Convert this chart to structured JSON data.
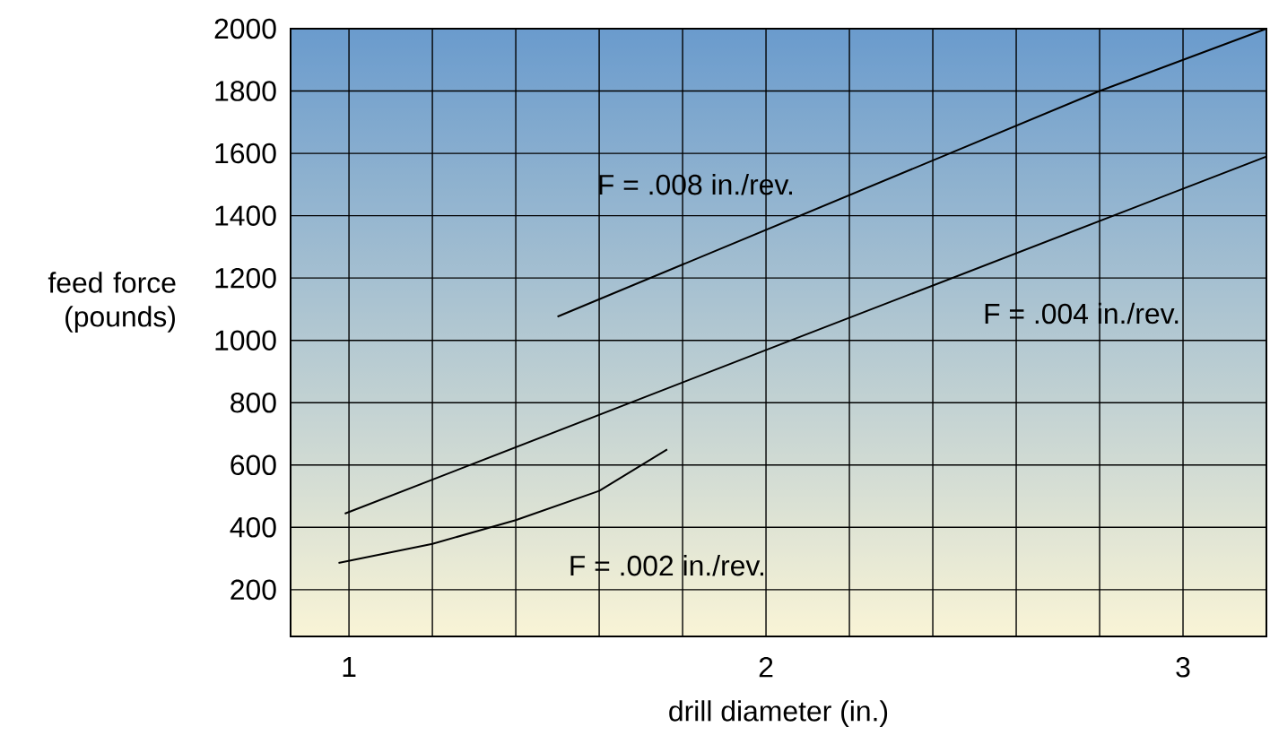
{
  "chart_data": {
    "type": "line",
    "xlabel": "drill diameter (in.)",
    "ylabel": "feed force (pounds)",
    "series": [
      {
        "name": "F = .008 in./rev.",
        "color": "#000000",
        "x": [
          1.5,
          2.8,
          3.2
        ],
        "values": [
          1076,
          1800,
          2000
        ]
      },
      {
        "name": "F = .004 in./rev.",
        "color": "#000000",
        "x": [
          0.99,
          2.06,
          3.2
        ],
        "values": [
          444,
          1000,
          1590
        ]
      },
      {
        "name": "F = .002 in./rev.",
        "color": "#000000",
        "x": [
          0.975,
          1.2,
          1.4,
          1.6,
          1.763
        ],
        "values": [
          286,
          347,
          423,
          517,
          650
        ]
      }
    ],
    "xlim": [
      0.86,
      3.2
    ],
    "ylim": [
      50,
      2000
    ],
    "xticks": [
      1,
      {
        "value": 1.2,
        "label": null
      },
      {
        "value": 1.4,
        "label": null
      },
      {
        "value": 1.6,
        "label": null
      },
      {
        "value": 1.8,
        "label": null
      },
      2,
      {
        "value": 2.2,
        "label": null
      },
      {
        "value": 2.4,
        "label": null
      },
      {
        "value": 2.6,
        "label": null
      },
      {
        "value": 2.8,
        "label": null
      },
      3
    ],
    "yticks": [
      200,
      400,
      600,
      800,
      1000,
      1200,
      1400,
      1600,
      1800,
      2000
    ],
    "grid": true,
    "marker": "none",
    "line_style": "solid"
  }
}
